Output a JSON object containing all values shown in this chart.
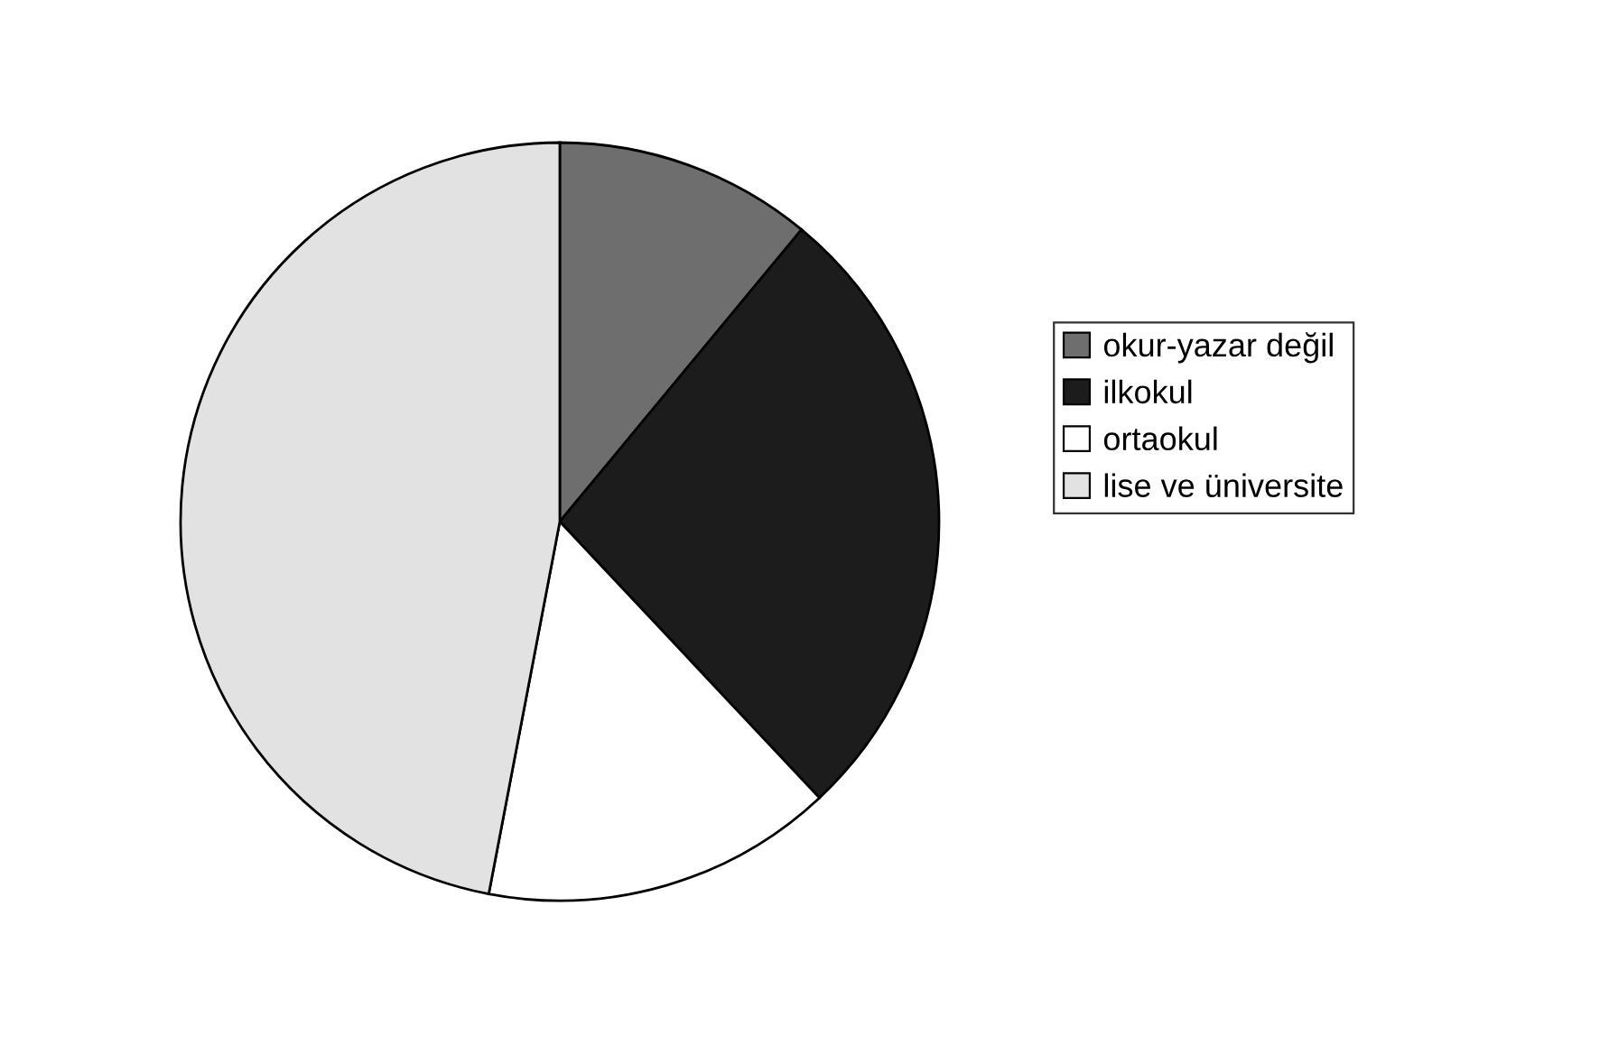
{
  "chart_data": {
    "type": "pie",
    "categories": [
      "okur-yazar değil",
      "ilkokul",
      "ortaokul",
      "lise ve üniversite"
    ],
    "values": [
      11,
      27,
      15,
      47
    ],
    "colors": [
      "#6e6e6e",
      "#1c1c1c",
      "#ffffff",
      "#e2e2e2"
    ],
    "legend": "right"
  }
}
